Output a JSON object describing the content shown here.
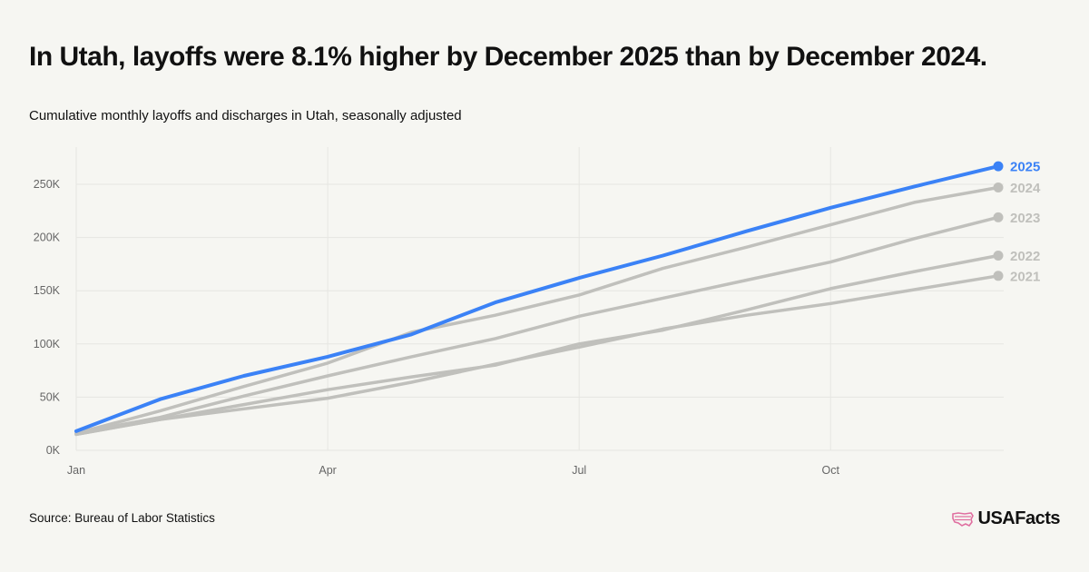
{
  "title": "In Utah, layoffs were 8.1% higher by December 2025 than by December 2024.",
  "subtitle": "Cumulative monthly layoffs and discharges in Utah, seasonally adjusted",
  "source": "Source: Bureau of Labor Statistics",
  "logo": "USAFacts",
  "colors": {
    "highlight": "#3b82f6",
    "muted": "#c0c0bc",
    "grid": "#e6e6e2",
    "axis_text": "#666666"
  },
  "chart_data": {
    "type": "line",
    "title": "In Utah, layoffs were 8.1% higher by December 2025 than by December 2024.",
    "subtitle": "Cumulative monthly layoffs and discharges in Utah, seasonally adjusted",
    "xlabel": "",
    "ylabel": "",
    "x": [
      "Jan",
      "Feb",
      "Mar",
      "Apr",
      "May",
      "Jun",
      "Jul",
      "Aug",
      "Sep",
      "Oct",
      "Nov",
      "Dec"
    ],
    "x_tick_labels": [
      "Jan",
      "Apr",
      "Jul",
      "Oct"
    ],
    "y_ticks": [
      0,
      50000,
      100000,
      150000,
      200000,
      250000
    ],
    "y_tick_labels": [
      "0K",
      "50K",
      "100K",
      "150K",
      "200K",
      "250K"
    ],
    "ylim": [
      0,
      285000
    ],
    "grid": true,
    "legend": "end-of-line labels",
    "series": [
      {
        "name": "2021",
        "values": [
          15000,
          29000,
          39000,
          49000,
          64000,
          81000,
          97000,
          114000,
          127000,
          138000,
          151000,
          164000
        ]
      },
      {
        "name": "2022",
        "values": [
          15000,
          29000,
          43000,
          57000,
          69000,
          80000,
          100000,
          113000,
          132000,
          152000,
          168000,
          183000
        ]
      },
      {
        "name": "2023",
        "values": [
          16000,
          31000,
          51000,
          70000,
          88000,
          105000,
          126000,
          143000,
          160000,
          177000,
          199000,
          219000
        ]
      },
      {
        "name": "2024",
        "values": [
          16000,
          37000,
          60000,
          82000,
          111000,
          127000,
          146000,
          171000,
          191000,
          212000,
          233000,
          247000
        ]
      },
      {
        "name": "2025",
        "values": [
          18000,
          48000,
          70000,
          88000,
          109000,
          139000,
          162000,
          183000,
          206000,
          228000,
          248000,
          267000
        ]
      }
    ],
    "highlight_series": "2025"
  }
}
